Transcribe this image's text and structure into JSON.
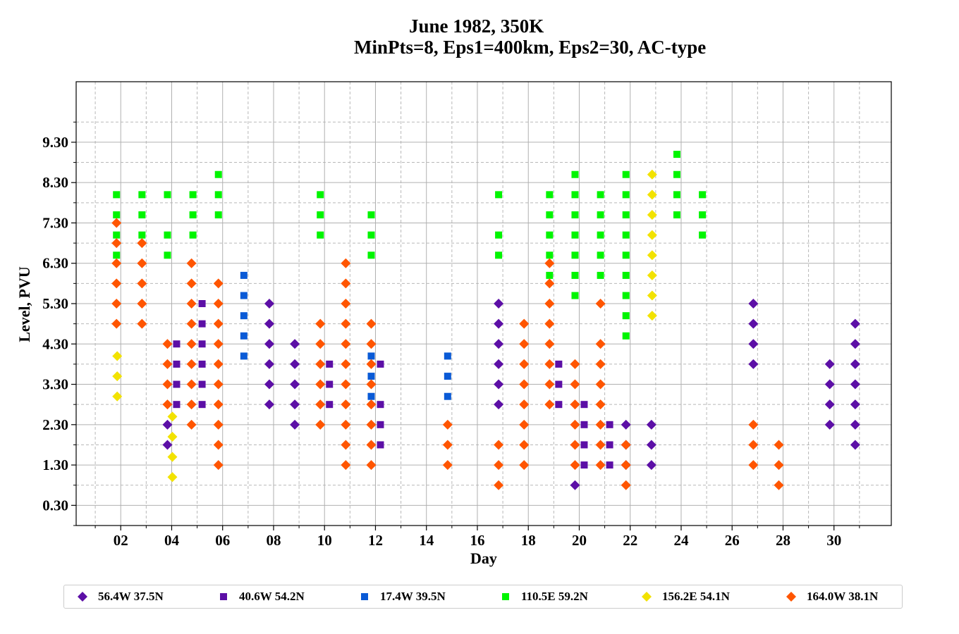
{
  "title_line1": "June 1982, 350K",
  "title_line2": "MinPts=8, Eps1=400km, Eps2=30, AC-type",
  "chart_data": {
    "type": "scatter",
    "title": "June 1982, 350K MinPts=8, Eps1=400km, Eps2=30, AC-type",
    "xlabel": "Day",
    "ylabel": "Level, PVU",
    "xlim": [
      0.25,
      32.25
    ],
    "ylim": [
      -0.2,
      10.8
    ],
    "xticks": [
      "02",
      "04",
      "06",
      "08",
      "10",
      "12",
      "14",
      "16",
      "18",
      "20",
      "22",
      "24",
      "26",
      "28",
      "30"
    ],
    "yticks": [
      "0.30",
      "1.30",
      "2.30",
      "3.30",
      "4.30",
      "5.30",
      "6.30",
      "7.30",
      "8.30",
      "9.30"
    ],
    "grid": true,
    "legend_position": "bottom",
    "series": [
      {
        "name": "56.4W 37.5N",
        "color": "#5c0fa6",
        "marker": "diamond",
        "points": [
          [
            4,
            2.3
          ],
          [
            4,
            1.8
          ],
          [
            8,
            5.3
          ],
          [
            8,
            4.8
          ],
          [
            8,
            4.3
          ],
          [
            8,
            3.8
          ],
          [
            8,
            3.3
          ],
          [
            8,
            2.8
          ],
          [
            9,
            4.3
          ],
          [
            9,
            3.8
          ],
          [
            9,
            3.3
          ],
          [
            9,
            2.8
          ],
          [
            9,
            2.3
          ],
          [
            17,
            5.3
          ],
          [
            17,
            4.8
          ],
          [
            17,
            4.3
          ],
          [
            17,
            3.8
          ],
          [
            17,
            3.3
          ],
          [
            17,
            2.8
          ],
          [
            20,
            0.8
          ],
          [
            22,
            2.3
          ],
          [
            22,
            1.8
          ],
          [
            22,
            1.3
          ],
          [
            23,
            2.3
          ],
          [
            23,
            1.8
          ],
          [
            23,
            1.3
          ],
          [
            27,
            5.3
          ],
          [
            27,
            4.8
          ],
          [
            27,
            4.3
          ],
          [
            27,
            3.8
          ],
          [
            30,
            3.8
          ],
          [
            30,
            3.3
          ],
          [
            30,
            2.8
          ],
          [
            30,
            2.3
          ],
          [
            31,
            4.8
          ],
          [
            31,
            4.3
          ],
          [
            31,
            3.8
          ],
          [
            31,
            3.3
          ],
          [
            31,
            2.8
          ],
          [
            31,
            2.3
          ],
          [
            31,
            1.8
          ]
        ]
      },
      {
        "name": "40.6W 54.2N",
        "color": "#5c0fa6",
        "marker": "square",
        "points": [
          [
            4,
            4.3
          ],
          [
            4,
            3.8
          ],
          [
            4,
            3.3
          ],
          [
            4,
            2.8
          ],
          [
            5,
            5.3
          ],
          [
            5,
            4.8
          ],
          [
            5,
            4.3
          ],
          [
            5,
            3.8
          ],
          [
            5,
            3.3
          ],
          [
            5,
            2.8
          ],
          [
            10,
            3.8
          ],
          [
            10,
            3.3
          ],
          [
            10,
            2.8
          ],
          [
            12,
            3.8
          ],
          [
            12,
            2.8
          ],
          [
            12,
            2.3
          ],
          [
            12,
            1.8
          ],
          [
            19,
            3.8
          ],
          [
            19,
            3.3
          ],
          [
            19,
            2.8
          ],
          [
            20,
            2.8
          ],
          [
            20,
            2.3
          ],
          [
            20,
            1.8
          ],
          [
            20,
            1.3
          ],
          [
            21,
            2.3
          ],
          [
            21,
            1.8
          ],
          [
            21,
            1.3
          ]
        ]
      },
      {
        "name": "17.4W 39.5N",
        "color": "#0a5ad6",
        "marker": "square",
        "points": [
          [
            7,
            6.0
          ],
          [
            7,
            5.5
          ],
          [
            7,
            5.0
          ],
          [
            7,
            4.5
          ],
          [
            7,
            4.0
          ],
          [
            12,
            4.0
          ],
          [
            12,
            3.5
          ],
          [
            12,
            3.0
          ],
          [
            15,
            4.0
          ],
          [
            15,
            3.5
          ],
          [
            15,
            3.0
          ]
        ]
      },
      {
        "name": "110.5E 59.2N",
        "color": "#00f500",
        "marker": "square",
        "points": [
          [
            2,
            8.0
          ],
          [
            2,
            7.5
          ],
          [
            2,
            7.0
          ],
          [
            2,
            6.5
          ],
          [
            3,
            8.0
          ],
          [
            3,
            7.5
          ],
          [
            3,
            7.0
          ],
          [
            4,
            8.0
          ],
          [
            4,
            7.0
          ],
          [
            4,
            6.5
          ],
          [
            5,
            8.0
          ],
          [
            5,
            7.5
          ],
          [
            5,
            7.0
          ],
          [
            6,
            8.5
          ],
          [
            6,
            8.0
          ],
          [
            6,
            7.5
          ],
          [
            10,
            8.0
          ],
          [
            10,
            7.5
          ],
          [
            10,
            7.0
          ],
          [
            12,
            7.5
          ],
          [
            12,
            7.0
          ],
          [
            12,
            6.5
          ],
          [
            17,
            8.0
          ],
          [
            17,
            7.0
          ],
          [
            17,
            6.5
          ],
          [
            19,
            8.0
          ],
          [
            19,
            7.5
          ],
          [
            19,
            7.0
          ],
          [
            19,
            6.5
          ],
          [
            19,
            6.0
          ],
          [
            20,
            8.5
          ],
          [
            20,
            8.0
          ],
          [
            20,
            7.5
          ],
          [
            20,
            7.0
          ],
          [
            20,
            6.5
          ],
          [
            20,
            6.0
          ],
          [
            20,
            5.5
          ],
          [
            21,
            8.0
          ],
          [
            21,
            7.5
          ],
          [
            21,
            7.0
          ],
          [
            21,
            6.5
          ],
          [
            21,
            6.0
          ],
          [
            22,
            8.5
          ],
          [
            22,
            8.0
          ],
          [
            22,
            7.5
          ],
          [
            22,
            7.0
          ],
          [
            22,
            6.5
          ],
          [
            22,
            6.0
          ],
          [
            22,
            5.5
          ],
          [
            22,
            5.0
          ],
          [
            22,
            4.5
          ],
          [
            24,
            9.0
          ],
          [
            24,
            8.5
          ],
          [
            24,
            8.0
          ],
          [
            24,
            7.5
          ],
          [
            25,
            8.0
          ],
          [
            25,
            7.5
          ],
          [
            25,
            7.0
          ]
        ]
      },
      {
        "name": "156.2E 54.1N",
        "color": "#f2e200",
        "marker": "diamond",
        "points": [
          [
            2,
            4.0
          ],
          [
            2,
            3.5
          ],
          [
            2,
            3.0
          ],
          [
            4,
            2.5
          ],
          [
            4,
            2.0
          ],
          [
            4,
            1.5
          ],
          [
            4,
            1.0
          ],
          [
            23,
            8.5
          ],
          [
            23,
            8.0
          ],
          [
            23,
            7.5
          ],
          [
            23,
            7.0
          ],
          [
            23,
            6.5
          ],
          [
            23,
            6.0
          ],
          [
            23,
            5.5
          ],
          [
            23,
            5.0
          ]
        ]
      },
      {
        "name": "164.0W 38.1N",
        "color": "#ff5500",
        "marker": "diamond",
        "points": [
          [
            2,
            7.3
          ],
          [
            2,
            6.8
          ],
          [
            2,
            6.3
          ],
          [
            2,
            5.8
          ],
          [
            2,
            5.3
          ],
          [
            2,
            4.8
          ],
          [
            3,
            6.8
          ],
          [
            3,
            6.3
          ],
          [
            3,
            5.8
          ],
          [
            3,
            5.3
          ],
          [
            3,
            4.8
          ],
          [
            4,
            4.3
          ],
          [
            4,
            3.8
          ],
          [
            4,
            3.3
          ],
          [
            4,
            2.8
          ],
          [
            5,
            6.3
          ],
          [
            5,
            5.8
          ],
          [
            5,
            5.3
          ],
          [
            5,
            4.8
          ],
          [
            5,
            4.3
          ],
          [
            5,
            3.8
          ],
          [
            5,
            3.3
          ],
          [
            5,
            2.8
          ],
          [
            5,
            2.3
          ],
          [
            6,
            5.8
          ],
          [
            6,
            5.3
          ],
          [
            6,
            4.8
          ],
          [
            6,
            4.3
          ],
          [
            6,
            3.8
          ],
          [
            6,
            3.3
          ],
          [
            6,
            2.8
          ],
          [
            6,
            2.3
          ],
          [
            6,
            1.8
          ],
          [
            6,
            1.3
          ],
          [
            10,
            4.8
          ],
          [
            10,
            4.3
          ],
          [
            10,
            3.8
          ],
          [
            10,
            3.3
          ],
          [
            10,
            2.8
          ],
          [
            10,
            2.3
          ],
          [
            11,
            6.3
          ],
          [
            11,
            5.8
          ],
          [
            11,
            5.3
          ],
          [
            11,
            4.8
          ],
          [
            11,
            4.3
          ],
          [
            11,
            3.8
          ],
          [
            11,
            3.3
          ],
          [
            11,
            2.8
          ],
          [
            11,
            2.3
          ],
          [
            11,
            1.8
          ],
          [
            11,
            1.3
          ],
          [
            12,
            4.8
          ],
          [
            12,
            4.3
          ],
          [
            12,
            3.8
          ],
          [
            12,
            3.3
          ],
          [
            12,
            2.8
          ],
          [
            12,
            2.3
          ],
          [
            12,
            1.8
          ],
          [
            12,
            1.3
          ],
          [
            15,
            2.3
          ],
          [
            15,
            1.8
          ],
          [
            15,
            1.3
          ],
          [
            17,
            1.8
          ],
          [
            17,
            1.3
          ],
          [
            17,
            0.8
          ],
          [
            18,
            4.8
          ],
          [
            18,
            4.3
          ],
          [
            18,
            3.8
          ],
          [
            18,
            3.3
          ],
          [
            18,
            2.8
          ],
          [
            18,
            2.3
          ],
          [
            18,
            1.8
          ],
          [
            18,
            1.3
          ],
          [
            19,
            6.3
          ],
          [
            19,
            5.8
          ],
          [
            19,
            5.3
          ],
          [
            19,
            4.8
          ],
          [
            19,
            4.3
          ],
          [
            19,
            3.8
          ],
          [
            19,
            3.3
          ],
          [
            19,
            2.8
          ],
          [
            20,
            3.8
          ],
          [
            20,
            3.3
          ],
          [
            20,
            2.8
          ],
          [
            20,
            2.3
          ],
          [
            20,
            1.8
          ],
          [
            20,
            1.3
          ],
          [
            21,
            5.3
          ],
          [
            21,
            4.3
          ],
          [
            21,
            3.8
          ],
          [
            21,
            3.3
          ],
          [
            21,
            2.8
          ],
          [
            21,
            2.3
          ],
          [
            21,
            1.8
          ],
          [
            21,
            1.3
          ],
          [
            22,
            1.8
          ],
          [
            22,
            1.3
          ],
          [
            22,
            0.8
          ],
          [
            27,
            2.3
          ],
          [
            27,
            1.8
          ],
          [
            27,
            1.3
          ],
          [
            28,
            1.8
          ],
          [
            28,
            1.3
          ],
          [
            28,
            0.8
          ]
        ]
      }
    ]
  }
}
